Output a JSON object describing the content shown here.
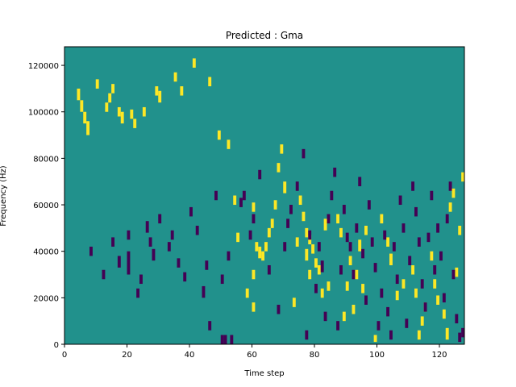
{
  "chart_data": {
    "type": "heatmap",
    "title": "Predicted : Gma",
    "xlabel": "Time step",
    "ylabel": "Frequency (Hz)",
    "xlim": [
      0,
      128
    ],
    "ylim": [
      0,
      128000
    ],
    "x_ticks": [
      0,
      20,
      40,
      60,
      80,
      100,
      120
    ],
    "y_ticks": [
      0,
      20000,
      40000,
      60000,
      80000,
      100000,
      120000
    ],
    "x_tick_labels": [
      "0",
      "20",
      "40",
      "60",
      "80",
      "100",
      "120"
    ],
    "y_tick_labels": [
      "0",
      "20000",
      "40000",
      "60000",
      "80000",
      "100000",
      "120000"
    ],
    "grid": false,
    "colors": {
      "background": "#21918c",
      "high": "#fde725",
      "low": "#440154",
      "axis": "#000000"
    },
    "colormap": "viridis",
    "value_levels": {
      "low": 0,
      "mid": 0.5,
      "high": 1
    },
    "cells_high": [
      [
        4,
        105,
        110
      ],
      [
        5,
        100,
        105
      ],
      [
        6,
        95,
        100
      ],
      [
        7,
        90,
        96
      ],
      [
        10,
        110,
        114
      ],
      [
        13,
        100,
        104
      ],
      [
        14,
        104,
        108
      ],
      [
        15,
        108,
        112
      ],
      [
        17,
        98,
        102
      ],
      [
        18,
        95,
        100
      ],
      [
        21,
        97,
        101
      ],
      [
        22,
        93,
        97
      ],
      [
        25,
        98,
        102
      ],
      [
        29,
        107,
        111
      ],
      [
        30,
        104,
        109
      ],
      [
        35,
        113,
        117
      ],
      [
        37,
        107,
        111
      ],
      [
        41,
        119,
        123
      ],
      [
        46,
        111,
        115
      ],
      [
        49,
        88,
        92
      ],
      [
        52,
        84,
        88
      ],
      [
        54,
        60,
        64
      ],
      [
        55,
        44,
        48
      ],
      [
        58,
        20,
        24
      ],
      [
        60,
        14,
        18
      ],
      [
        60,
        28,
        32
      ],
      [
        60,
        57,
        61
      ],
      [
        61,
        40,
        44
      ],
      [
        62,
        37,
        42
      ],
      [
        63,
        36,
        40
      ],
      [
        64,
        40,
        44
      ],
      [
        65,
        46,
        50
      ],
      [
        66,
        50,
        54
      ],
      [
        67,
        58,
        62
      ],
      [
        68,
        74,
        78
      ],
      [
        69,
        82,
        86
      ],
      [
        70,
        65,
        70
      ],
      [
        73,
        16,
        20
      ],
      [
        74,
        42,
        46
      ],
      [
        75,
        60,
        64
      ],
      [
        76,
        53,
        57
      ],
      [
        77,
        36,
        41
      ],
      [
        77,
        46,
        50
      ],
      [
        78,
        28,
        32
      ],
      [
        78,
        43,
        47
      ],
      [
        79,
        39,
        43
      ],
      [
        80,
        33,
        37
      ],
      [
        81,
        30,
        34
      ],
      [
        82,
        20,
        24
      ],
      [
        83,
        49,
        54
      ],
      [
        84,
        23,
        27
      ],
      [
        87,
        52,
        56
      ],
      [
        88,
        46,
        50
      ],
      [
        89,
        10,
        14
      ],
      [
        90,
        23,
        27
      ],
      [
        91,
        34,
        38
      ],
      [
        92,
        13,
        17
      ],
      [
        93,
        28,
        32
      ],
      [
        94,
        40,
        45
      ],
      [
        95,
        22,
        26
      ],
      [
        96,
        47,
        51
      ],
      [
        99,
        1,
        4
      ],
      [
        101,
        52,
        56
      ],
      [
        103,
        42,
        46
      ],
      [
        104,
        34,
        39
      ],
      [
        106,
        19,
        23
      ],
      [
        108,
        24,
        28
      ],
      [
        111,
        30,
        34
      ],
      [
        112,
        20,
        24
      ],
      [
        113,
        2,
        6
      ],
      [
        114,
        8,
        12
      ],
      [
        115,
        14,
        18
      ],
      [
        117,
        36,
        40
      ],
      [
        118,
        24,
        28
      ],
      [
        119,
        17,
        21
      ],
      [
        121,
        11,
        15
      ],
      [
        122,
        2,
        7
      ],
      [
        123,
        57,
        61
      ],
      [
        124,
        63,
        67
      ],
      [
        125,
        29,
        33
      ],
      [
        126,
        47,
        51
      ],
      [
        127,
        70,
        74
      ]
    ],
    "cells_low": [
      [
        8,
        38,
        42
      ],
      [
        12,
        28,
        32
      ],
      [
        15,
        42,
        46
      ],
      [
        17,
        33,
        38
      ],
      [
        20,
        30,
        40
      ],
      [
        20,
        45,
        49
      ],
      [
        23,
        20,
        24
      ],
      [
        24,
        26,
        30
      ],
      [
        26,
        48,
        53
      ],
      [
        27,
        42,
        46
      ],
      [
        28,
        36,
        41
      ],
      [
        30,
        52,
        56
      ],
      [
        33,
        40,
        44
      ],
      [
        34,
        45,
        49
      ],
      [
        36,
        33,
        37
      ],
      [
        38,
        27,
        31
      ],
      [
        40,
        55,
        59
      ],
      [
        42,
        47,
        51
      ],
      [
        44,
        20,
        25
      ],
      [
        45,
        32,
        36
      ],
      [
        46,
        6,
        10
      ],
      [
        48,
        62,
        66
      ],
      [
        50,
        0,
        4
      ],
      [
        50,
        26,
        30
      ],
      [
        51,
        0,
        4
      ],
      [
        52,
        36,
        40
      ],
      [
        53,
        0,
        4
      ],
      [
        56,
        59,
        63
      ],
      [
        57,
        62,
        66
      ],
      [
        59,
        45,
        49
      ],
      [
        60,
        52,
        56
      ],
      [
        62,
        71,
        75
      ],
      [
        65,
        30,
        34
      ],
      [
        68,
        13,
        17
      ],
      [
        70,
        40,
        44
      ],
      [
        71,
        50,
        54
      ],
      [
        72,
        56,
        60
      ],
      [
        74,
        66,
        70
      ],
      [
        76,
        80,
        84
      ],
      [
        77,
        2,
        6
      ],
      [
        78,
        45,
        49
      ],
      [
        80,
        22,
        26
      ],
      [
        81,
        40,
        44
      ],
      [
        82,
        31,
        36
      ],
      [
        83,
        10,
        14
      ],
      [
        84,
        52,
        56
      ],
      [
        85,
        62,
        66
      ],
      [
        86,
        72,
        76
      ],
      [
        87,
        6,
        10
      ],
      [
        88,
        30,
        34
      ],
      [
        89,
        56,
        60
      ],
      [
        90,
        44,
        48
      ],
      [
        91,
        40,
        44
      ],
      [
        92,
        28,
        32
      ],
      [
        93,
        48,
        52
      ],
      [
        94,
        68,
        72
      ],
      [
        95,
        37,
        41
      ],
      [
        96,
        17,
        21
      ],
      [
        97,
        58,
        62
      ],
      [
        98,
        42,
        46
      ],
      [
        99,
        31,
        35
      ],
      [
        100,
        6,
        10
      ],
      [
        101,
        20,
        24
      ],
      [
        102,
        45,
        49
      ],
      [
        103,
        12,
        16
      ],
      [
        104,
        2,
        6
      ],
      [
        105,
        40,
        44
      ],
      [
        106,
        26,
        30
      ],
      [
        107,
        60,
        64
      ],
      [
        108,
        48,
        52
      ],
      [
        109,
        7,
        11
      ],
      [
        110,
        34,
        38
      ],
      [
        111,
        66,
        70
      ],
      [
        112,
        55,
        59
      ],
      [
        113,
        42,
        46
      ],
      [
        114,
        24,
        28
      ],
      [
        115,
        14,
        18
      ],
      [
        116,
        44,
        48
      ],
      [
        117,
        62,
        66
      ],
      [
        118,
        30,
        34
      ],
      [
        119,
        48,
        52
      ],
      [
        120,
        36,
        40
      ],
      [
        121,
        18,
        22
      ],
      [
        122,
        52,
        56
      ],
      [
        123,
        66,
        70
      ],
      [
        124,
        28,
        32
      ],
      [
        125,
        9,
        13
      ],
      [
        126,
        1,
        5
      ],
      [
        127,
        3,
        7
      ]
    ]
  }
}
